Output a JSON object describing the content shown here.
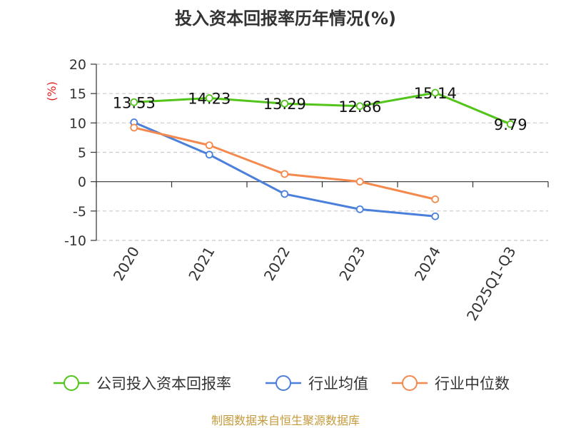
{
  "chart_data": {
    "type": "line",
    "title": "投入资本回报率历年情况(%)",
    "ylabel": "(%)",
    "xlabel": "",
    "categories": [
      "2020",
      "2021",
      "2022",
      "2023",
      "2024",
      "2025Q1-Q3"
    ],
    "ylim": [
      -10,
      20
    ],
    "yticks": [
      20,
      15,
      10,
      5,
      0,
      -5,
      -10
    ],
    "ytick_labels": [
      "20",
      "15",
      "10",
      "5",
      "0",
      "-5",
      "-10"
    ],
    "grid": true,
    "legend_position": "bottom",
    "series": [
      {
        "name": "公司投入资本回报率",
        "color": "#52c41a",
        "values": [
          13.53,
          14.23,
          13.29,
          12.86,
          15.14,
          9.79
        ],
        "labels": [
          "13.53",
          "14.23",
          "13.29",
          "12.86",
          "15.14",
          "9.79"
        ]
      },
      {
        "name": "行业均值",
        "color": "#4a7fdc",
        "values": [
          10.1,
          4.6,
          -2.1,
          -4.7,
          -5.9,
          null
        ]
      },
      {
        "name": "行业中位数",
        "color": "#f5894d",
        "values": [
          9.2,
          6.2,
          1.3,
          0.0,
          -3.0,
          null
        ]
      }
    ]
  },
  "footer": {
    "source": "制图数据来自恒生聚源数据库"
  }
}
